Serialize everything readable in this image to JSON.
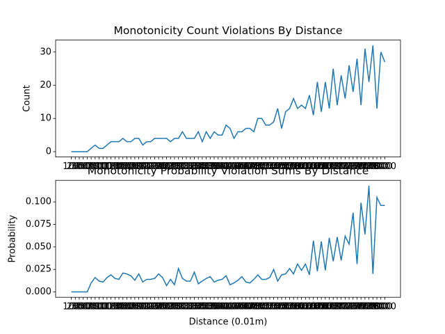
{
  "chart_data": [
    {
      "type": "line",
      "title": "Monotonicity Count Violations By Distance",
      "ylabel": "Count",
      "categories": [
        "100",
        "200",
        "300",
        "400",
        "500",
        "600",
        "700",
        "800",
        "900",
        "1000",
        "1100",
        "1200",
        "1300",
        "1400",
        "1500",
        "1600",
        "1700",
        "1800",
        "1900",
        "2000",
        "2100",
        "2200",
        "2300",
        "2400",
        "2500",
        "2600",
        "2700",
        "2800",
        "2900",
        "3000",
        "3100",
        "3200",
        "3300",
        "3400",
        "3500",
        "3600",
        "3700",
        "3800",
        "3900",
        "4000",
        "4100",
        "4200",
        "4300",
        "4400",
        "4500",
        "4600",
        "4700",
        "4800",
        "4900",
        "5000",
        "5100",
        "5200",
        "5300",
        "5400",
        "5500",
        "5600",
        "5700",
        "5800",
        "5900",
        "6000",
        "6100",
        "6200",
        "6300",
        "6400",
        "6500",
        "6600",
        "6700",
        "6800",
        "6900",
        "7000",
        "7100",
        "7200",
        "7300",
        "7400",
        "7500",
        "7600",
        "7700",
        "7800",
        "7900",
        "8000"
      ],
      "values": [
        0,
        0,
        0,
        0,
        0,
        1,
        2,
        1,
        1,
        2,
        3,
        3,
        3,
        4,
        3,
        3,
        4,
        4,
        2,
        3,
        3,
        4,
        4,
        4,
        4,
        3,
        4,
        4,
        6,
        4,
        4,
        4,
        6,
        3,
        6,
        4,
        6,
        5,
        5,
        8,
        7,
        4,
        6,
        6,
        7,
        7,
        6,
        10,
        10,
        8,
        8,
        9,
        13,
        7,
        12,
        13,
        16,
        13,
        14,
        13,
        17,
        11,
        21,
        12,
        21,
        13,
        25,
        14,
        23,
        16,
        26,
        18,
        28,
        14,
        31,
        21,
        32,
        13,
        30,
        27
      ],
      "color": "#1f77b4",
      "ylim": [
        -1.6,
        33.6
      ],
      "yticks": [
        0,
        10,
        20,
        30
      ]
    },
    {
      "type": "line",
      "title": "Monotonicity Probability Violation Sums By Distance",
      "ylabel": "Probability",
      "xlabel": "Distance (0.01m)",
      "categories": [
        "100",
        "200",
        "300",
        "400",
        "500",
        "600",
        "700",
        "800",
        "900",
        "1000",
        "1100",
        "1200",
        "1300",
        "1400",
        "1500",
        "1600",
        "1700",
        "1800",
        "1900",
        "2000",
        "2100",
        "2200",
        "2300",
        "2400",
        "2500",
        "2600",
        "2700",
        "2800",
        "2900",
        "3000",
        "3100",
        "3200",
        "3300",
        "3400",
        "3500",
        "3600",
        "3700",
        "3800",
        "3900",
        "4000",
        "4100",
        "4200",
        "4300",
        "4400",
        "4500",
        "4600",
        "4700",
        "4800",
        "4900",
        "5000",
        "5100",
        "5200",
        "5300",
        "5400",
        "5500",
        "5600",
        "5700",
        "5800",
        "5900",
        "6000",
        "6100",
        "6200",
        "6300",
        "6400",
        "6500",
        "6600",
        "6700",
        "6800",
        "6900",
        "7000",
        "7100",
        "7200",
        "7300",
        "7400",
        "7500",
        "7600",
        "7700",
        "7800",
        "7900",
        "8000"
      ],
      "values": [
        0,
        0,
        0,
        0,
        0,
        0.01,
        0.016,
        0.012,
        0.011,
        0.016,
        0.019,
        0.015,
        0.014,
        0.021,
        0.02,
        0.018,
        0.013,
        0.02,
        0.011,
        0.014,
        0.014,
        0.015,
        0.02,
        0.016,
        0.007,
        0.014,
        0.008,
        0.026,
        0.015,
        0.012,
        0.012,
        0.022,
        0.009,
        0.012,
        0.015,
        0.017,
        0.011,
        0.013,
        0.014,
        0.018,
        0.008,
        0.01,
        0.013,
        0.017,
        0.011,
        0.01,
        0.014,
        0.019,
        0.014,
        0.014,
        0.016,
        0.025,
        0.012,
        0.019,
        0.02,
        0.026,
        0.02,
        0.031,
        0.024,
        0.031,
        0.019,
        0.057,
        0.023,
        0.056,
        0.024,
        0.06,
        0.034,
        0.061,
        0.035,
        0.062,
        0.053,
        0.088,
        0.031,
        0.099,
        0.064,
        0.118,
        0.02,
        0.105,
        0.096,
        0.096
      ],
      "color": "#1f77b4",
      "ylim": [
        -0.0059,
        0.1239
      ],
      "yticks": [
        {
          "value": 0,
          "label": "0.000"
        },
        {
          "value": 0.025,
          "label": "0.025"
        },
        {
          "value": 0.05,
          "label": "0.050"
        },
        {
          "value": 0.075,
          "label": "0.075"
        },
        {
          "value": 0.1,
          "label": "0.100"
        }
      ]
    }
  ]
}
